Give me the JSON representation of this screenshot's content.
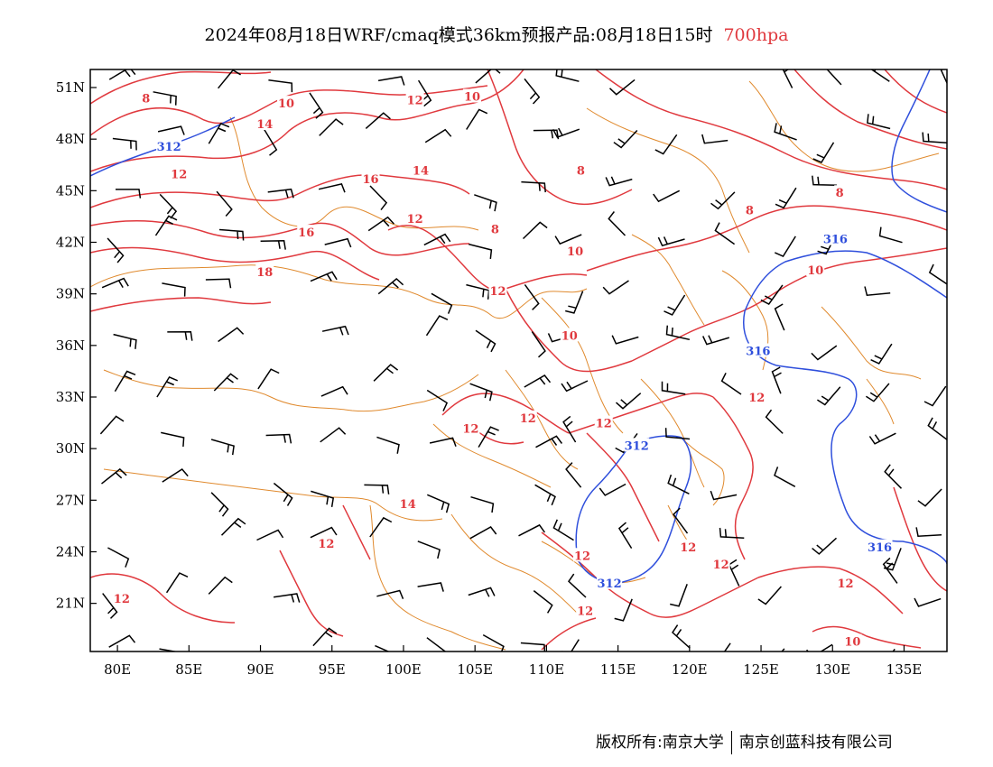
{
  "title": {
    "main": "2024年08月18日WRF/cmaq模式36km预报产品:08月18日15时",
    "level": "700hpa"
  },
  "axes": {
    "lat_ticks": [
      "51N",
      "48N",
      "45N",
      "42N",
      "39N",
      "36N",
      "33N",
      "30N",
      "27N",
      "24N",
      "21N"
    ],
    "lon_ticks": [
      "80E",
      "85E",
      "90E",
      "95E",
      "100E",
      "105E",
      "110E",
      "115E",
      "120E",
      "125E",
      "130E",
      "135E"
    ]
  },
  "contour_labels": {
    "red": [
      {
        "text": "8",
        "lon": 82.0,
        "lat": 50.4
      },
      {
        "text": "10",
        "lon": 91.8,
        "lat": 50.1
      },
      {
        "text": "12",
        "lon": 100.8,
        "lat": 50.3
      },
      {
        "text": "10",
        "lon": 104.8,
        "lat": 50.5
      },
      {
        "text": "14",
        "lon": 90.3,
        "lat": 48.9
      },
      {
        "text": "12",
        "lon": 84.3,
        "lat": 46.0
      },
      {
        "text": "16",
        "lon": 97.7,
        "lat": 45.7
      },
      {
        "text": "14",
        "lon": 101.2,
        "lat": 46.2
      },
      {
        "text": "12",
        "lon": 100.8,
        "lat": 43.4
      },
      {
        "text": "16",
        "lon": 93.2,
        "lat": 42.6
      },
      {
        "text": "18",
        "lon": 90.3,
        "lat": 40.3
      },
      {
        "text": "8",
        "lon": 106.4,
        "lat": 42.8
      },
      {
        "text": "8",
        "lon": 112.4,
        "lat": 46.2
      },
      {
        "text": "10",
        "lon": 112.0,
        "lat": 41.5
      },
      {
        "text": "8",
        "lon": 124.2,
        "lat": 43.9
      },
      {
        "text": "8",
        "lon": 130.5,
        "lat": 44.9
      },
      {
        "text": "10",
        "lon": 128.8,
        "lat": 40.4
      },
      {
        "text": "12",
        "lon": 106.6,
        "lat": 39.2
      },
      {
        "text": "10",
        "lon": 111.6,
        "lat": 36.6
      },
      {
        "text": "12",
        "lon": 124.7,
        "lat": 33.0
      },
      {
        "text": "12",
        "lon": 104.7,
        "lat": 31.2
      },
      {
        "text": "12",
        "lon": 108.7,
        "lat": 31.8
      },
      {
        "text": "12",
        "lon": 114.0,
        "lat": 31.5
      },
      {
        "text": "14",
        "lon": 100.3,
        "lat": 26.8
      },
      {
        "text": "12",
        "lon": 94.6,
        "lat": 24.5
      },
      {
        "text": "12",
        "lon": 112.5,
        "lat": 23.8
      },
      {
        "text": "12",
        "lon": 119.9,
        "lat": 24.3
      },
      {
        "text": "12",
        "lon": 122.2,
        "lat": 23.3
      },
      {
        "text": "12",
        "lon": 80.3,
        "lat": 21.3
      },
      {
        "text": "12",
        "lon": 112.7,
        "lat": 20.6
      },
      {
        "text": "12",
        "lon": 130.9,
        "lat": 22.2
      },
      {
        "text": "10",
        "lon": 131.4,
        "lat": 18.8
      }
    ],
    "blue": [
      {
        "text": "312",
        "lon": 83.6,
        "lat": 47.6
      },
      {
        "text": "316",
        "lon": 130.2,
        "lat": 42.2
      },
      {
        "text": "316",
        "lon": 124.8,
        "lat": 35.7
      },
      {
        "text": "312",
        "lon": 116.3,
        "lat": 30.2
      },
      {
        "text": "312",
        "lon": 114.4,
        "lat": 22.2
      },
      {
        "text": "316",
        "lon": 133.3,
        "lat": 24.3
      }
    ]
  },
  "colors": {
    "red_contour": "#e0393e",
    "blue_contour": "#2f4fdc",
    "boundary": "#e08a2e",
    "wind_barb": "#000000"
  },
  "footer": {
    "left": "版权所有:南京大学",
    "right": "南京创蓝科技有限公司"
  }
}
